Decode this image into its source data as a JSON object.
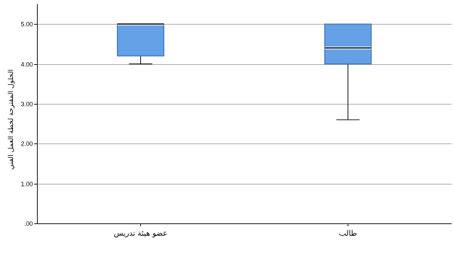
{
  "chart_data": {
    "type": "boxplot",
    "ylabel": "الحلول المقترحة لخطة العمل الفني",
    "xlabel": "",
    "ylim": [
      0,
      5.5
    ],
    "yticks": [
      0,
      1,
      2,
      3,
      4,
      5
    ],
    "ytick_labels": [
      ".00",
      "1.00",
      "2.00",
      "3.00",
      "4.00",
      "5.00"
    ],
    "grid": "horizontal",
    "categories": [
      "عضو هيئة تدريس",
      "طالب"
    ],
    "boxes": [
      {
        "category": "عضو هيئة تدريس",
        "min": 4.0,
        "q1": 4.2,
        "median": 5.0,
        "q3": 5.0,
        "max": 5.0
      },
      {
        "category": "طالب",
        "min": 2.6,
        "q1": 4.0,
        "median": 4.4,
        "q3": 5.0,
        "max": 5.0
      }
    ],
    "colors": {
      "box_fill": "#63a0e6",
      "box_stroke": "#3a6fb3",
      "grid": "#a6a6a6",
      "axis": "#000000",
      "whisker": "#000000"
    }
  }
}
